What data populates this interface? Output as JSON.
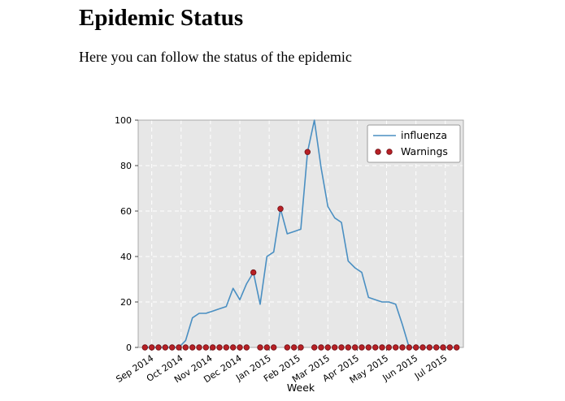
{
  "page": {
    "title": "Epidemic Status",
    "subtitle": "Here you can follow the status of the epidemic"
  },
  "chart_data": {
    "type": "line",
    "title": "",
    "xlabel": "Week",
    "ylabel": "",
    "xlim": [
      -1,
      47
    ],
    "ylim": [
      0,
      100
    ],
    "yticks": [
      0,
      20,
      40,
      60,
      80,
      100
    ],
    "xtick_positions": [
      1,
      5.333,
      9.667,
      14,
      18.333,
      22.667,
      27,
      31.333,
      35.667,
      40,
      44.333
    ],
    "xtick_labels": [
      "Sep 2014",
      "Oct 2014",
      "Nov 2014",
      "Dec 2014",
      "Jan 2015",
      "Feb 2015",
      "Mar 2015",
      "Apr 2015",
      "May 2015",
      "Jun 2015",
      "Jul 2015"
    ],
    "grid": true,
    "legend_position": "upper right",
    "legend": [
      "influenza",
      "Warnings"
    ],
    "series": [
      {
        "name": "influenza",
        "type": "line",
        "color": "#4a8fc2",
        "x": [
          0,
          1,
          2,
          3,
          4,
          5,
          6,
          7,
          8,
          9,
          10,
          11,
          12,
          13,
          14,
          15,
          16,
          17,
          18,
          19,
          20,
          21,
          22,
          23,
          24,
          25,
          26,
          27,
          28,
          29,
          30,
          31,
          32,
          33,
          34,
          35,
          36,
          37,
          38,
          39,
          40,
          41,
          42,
          43,
          44,
          45,
          46
        ],
        "values": [
          0,
          0,
          0,
          0,
          0,
          0,
          3,
          13,
          15,
          15,
          16,
          17,
          18,
          26,
          21,
          28,
          33,
          19,
          40,
          42,
          61,
          50,
          51,
          52,
          86,
          100,
          79,
          62,
          57,
          55,
          38,
          35,
          33,
          22,
          21,
          20,
          20,
          19,
          10,
          0,
          0,
          0,
          0,
          0,
          0,
          0,
          0
        ]
      },
      {
        "name": "Warnings",
        "type": "scatter",
        "color": "#b82025",
        "edge_color": "#6e0f14",
        "x": [
          0,
          1,
          2,
          3,
          4,
          5,
          6,
          7,
          8,
          9,
          10,
          11,
          12,
          13,
          14,
          15,
          16,
          17,
          18,
          19,
          20,
          21,
          22,
          23,
          24,
          25,
          26,
          27,
          28,
          29,
          30,
          31,
          32,
          33,
          34,
          35,
          36,
          37,
          38,
          39,
          40,
          41,
          42,
          43,
          44,
          45,
          46
        ],
        "values": [
          0,
          0,
          0,
          0,
          0,
          0,
          0,
          0,
          0,
          0,
          0,
          0,
          0,
          0,
          0,
          0,
          33,
          0,
          0,
          0,
          61,
          0,
          0,
          0,
          86,
          0,
          0,
          0,
          0,
          0,
          0,
          0,
          0,
          0,
          0,
          0,
          0,
          0,
          0,
          0,
          0,
          0,
          0,
          0,
          0,
          0,
          0
        ]
      }
    ],
    "style": {
      "plot_bg": "#e7e7e7",
      "grid_color": "#ffffff",
      "spine_color": "#aaaaaa",
      "tick_color": "#444444",
      "legend_border": "#999999",
      "legend_bg": "#ffffff"
    }
  }
}
